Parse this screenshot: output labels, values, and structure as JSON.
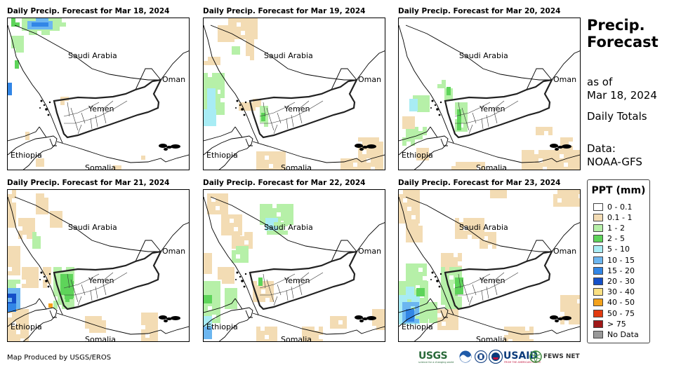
{
  "panels": [
    {
      "title": "Daily Precip. Forecast for Mar 18, 2024"
    },
    {
      "title": "Daily Precip. Forecast for Mar 19, 2024"
    },
    {
      "title": "Daily Precip. Forecast for Mar 20, 2024"
    },
    {
      "title": "Daily Precip. Forecast for Mar 21, 2024"
    },
    {
      "title": "Daily Precip. Forecast for Mar 22, 2024"
    },
    {
      "title": "Daily Precip. Forecast for Mar 23, 2024"
    }
  ],
  "labels": {
    "saudi_arabia": "Saudi Arabia",
    "oman": "Oman",
    "yemen": "Yemen",
    "ethiopia": "Ethiopia",
    "somalia": "Somalia"
  },
  "side": {
    "title_line1": "Precip.",
    "title_line2": "Forecast",
    "as_of": "as of",
    "date": "Mar 18, 2024",
    "totals": "Daily Totals",
    "data_label": "Data:",
    "data_source": "NOAA-GFS"
  },
  "legend": {
    "title": "PPT (mm)",
    "items": [
      {
        "label": "0 - 0.1",
        "color": "#ffffff"
      },
      {
        "label": "0.1 - 1",
        "color": "#f3dcb4"
      },
      {
        "label": "1 - 2",
        "color": "#b6f0a8"
      },
      {
        "label": "2 - 5",
        "color": "#5ed45a"
      },
      {
        "label": "5 - 10",
        "color": "#a8ecf4"
      },
      {
        "label": "10 - 15",
        "color": "#6cb6f0"
      },
      {
        "label": "15 - 20",
        "color": "#3286e6"
      },
      {
        "label": "20 - 30",
        "color": "#1450c8"
      },
      {
        "label": "30 - 40",
        "color": "#fae082"
      },
      {
        "label": "40 - 50",
        "color": "#f4a21c"
      },
      {
        "label": "50 - 75",
        "color": "#e23a10"
      },
      {
        "label": "> 75",
        "color": "#a01818"
      },
      {
        "label": "No Data",
        "color": "#999999"
      }
    ]
  },
  "footer": {
    "credit": "Map Produced by USGS/EROS",
    "logos": {
      "usgs": "USGS",
      "usgs_tagline": "science for a changing world",
      "usaid": "USAID",
      "usaid_tagline": "FROM THE AMERICAN PEOPLE",
      "fews": "FEWS NET"
    }
  }
}
